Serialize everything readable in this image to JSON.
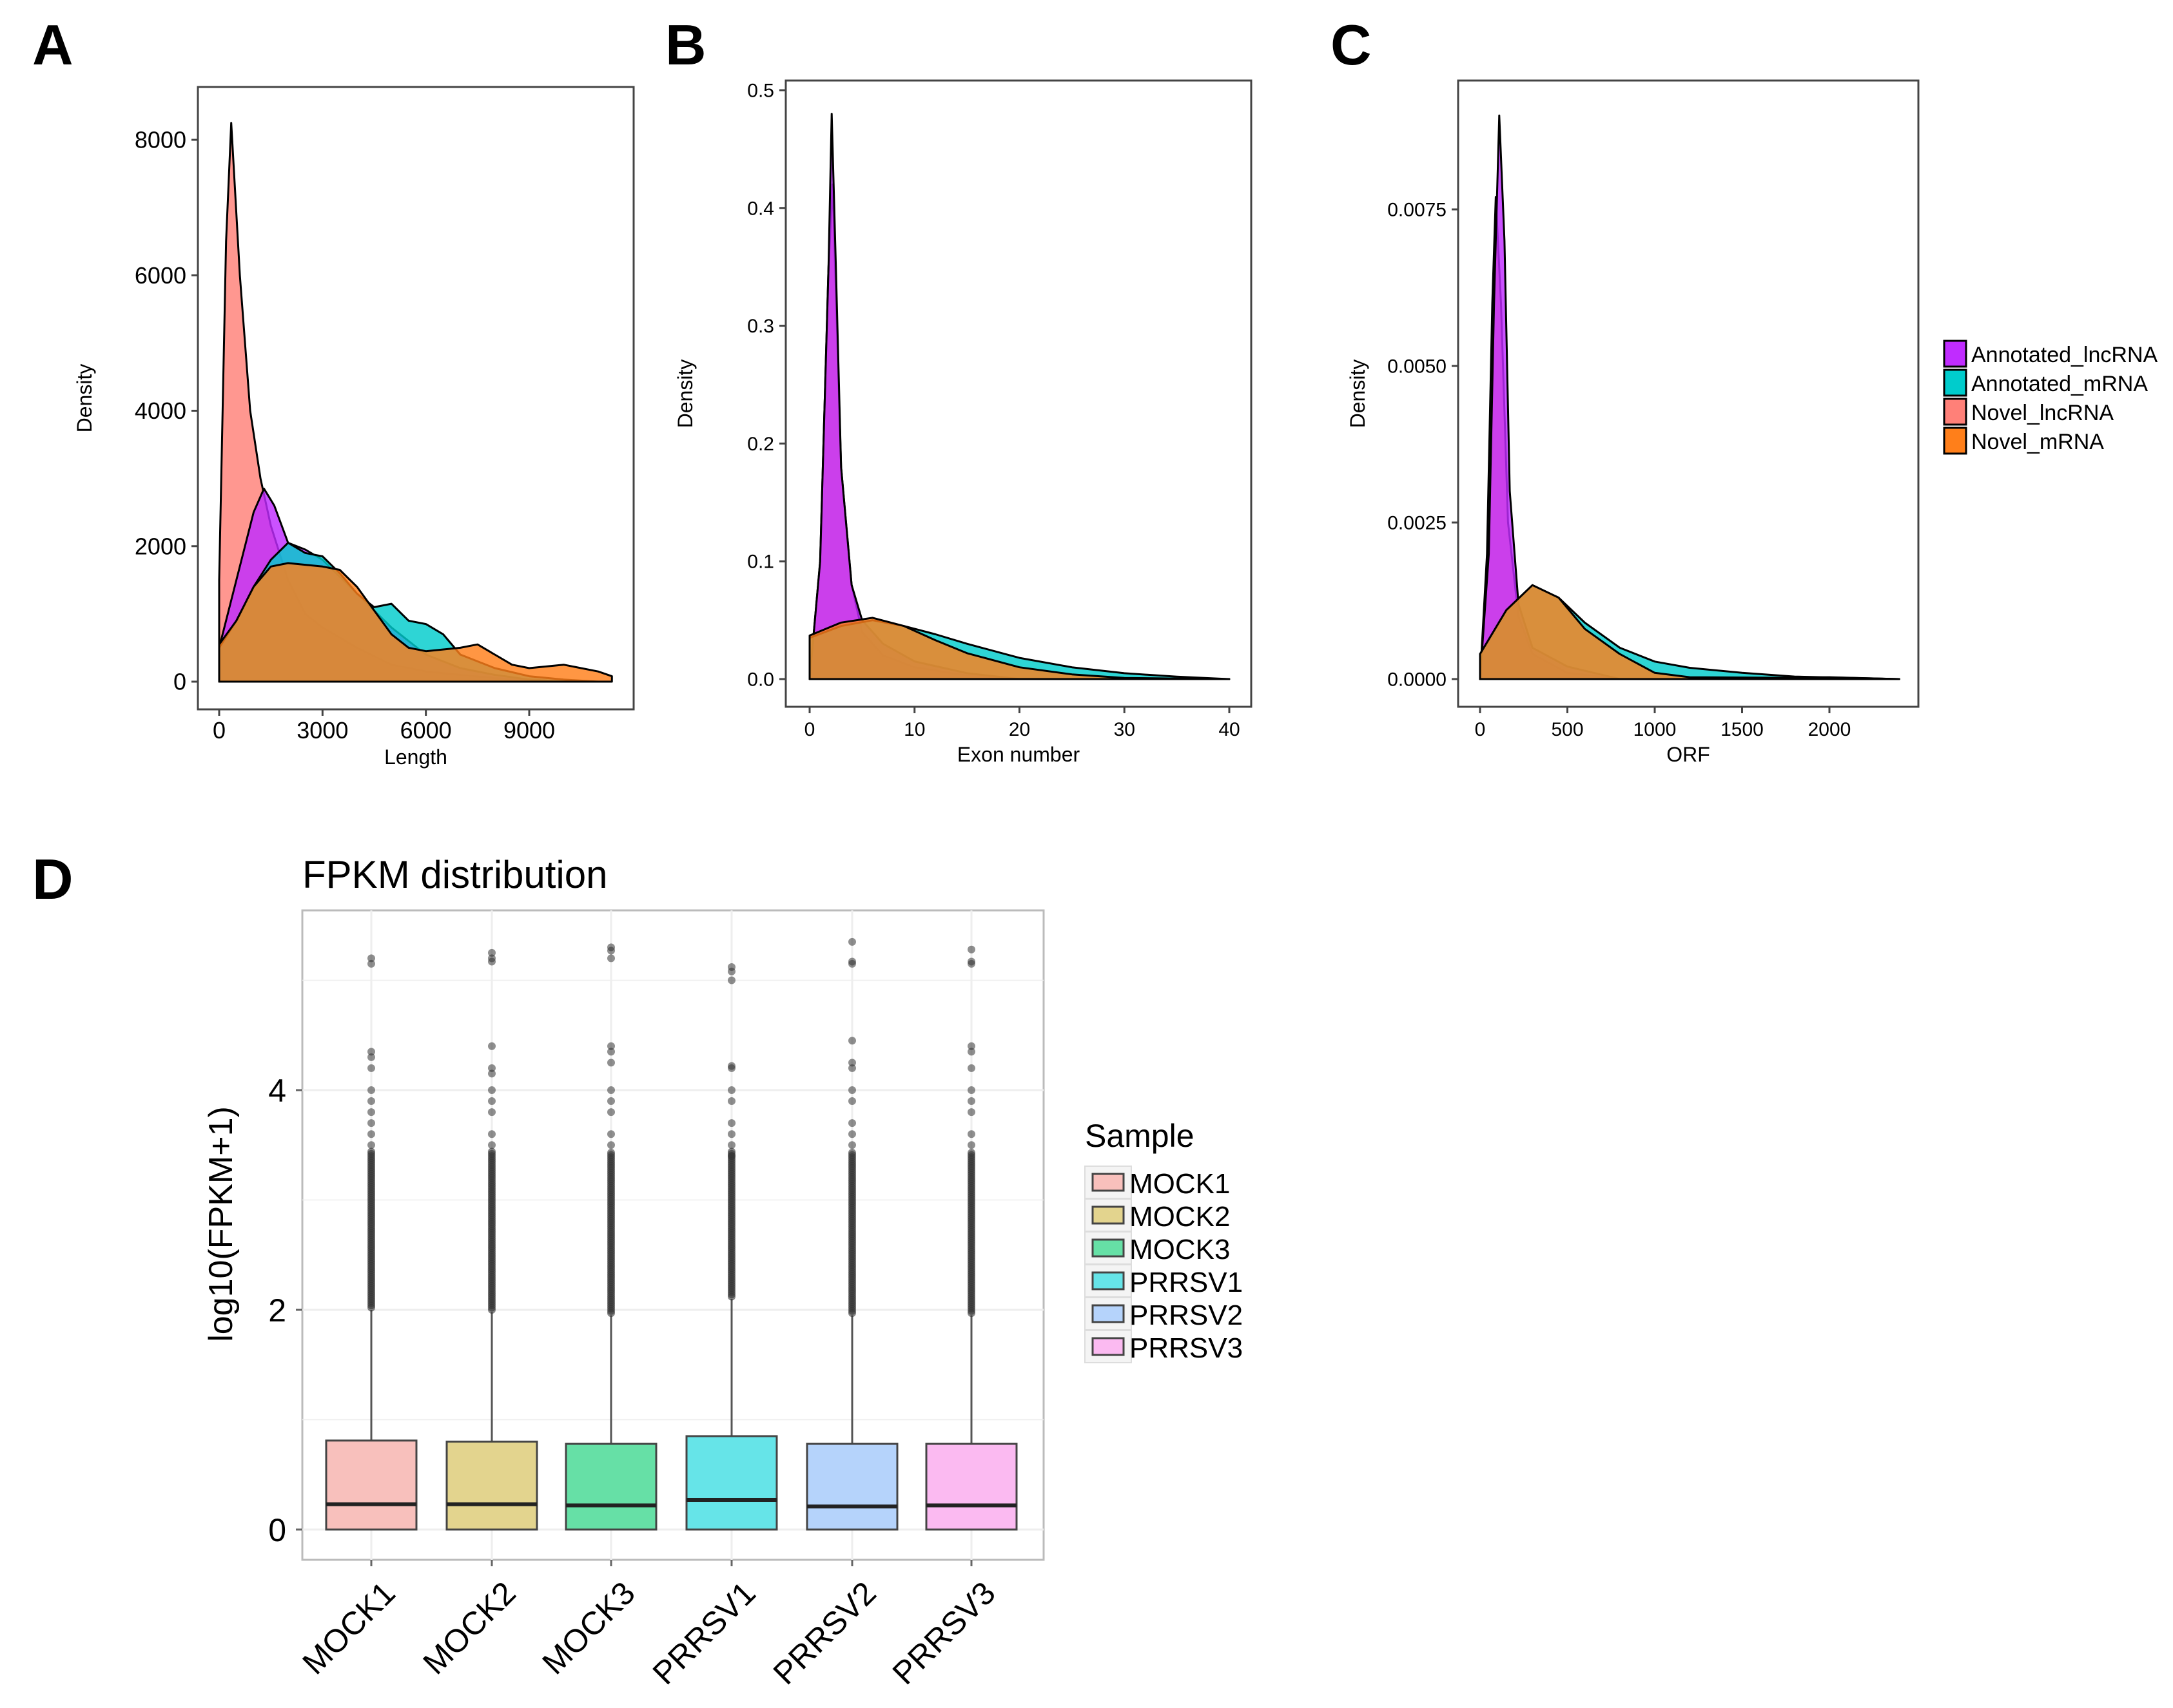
{
  "panel_letters": {
    "a": "A",
    "b": "B",
    "c": "C",
    "d": "D"
  },
  "density_legend": {
    "items": [
      {
        "label": "Annotated_lncRNA",
        "color": "#c02cff"
      },
      {
        "label": "Annotated_mRNA",
        "color": "#00cccc"
      },
      {
        "label": "Novel_lncRNA",
        "color": "#ff8078"
      },
      {
        "label": "Novel_mRNA",
        "color": "#ff7f1a"
      }
    ]
  },
  "chart_data": [
    {
      "type": "area",
      "panel": "A",
      "xlabel": "Length",
      "ylabel": "Density",
      "xlim": [
        0,
        11400
      ],
      "ylim": [
        0,
        8500
      ],
      "xticks": [
        "0",
        "3000",
        "6000",
        "9000"
      ],
      "xtick_values": [
        0,
        3000,
        6000,
        9000
      ],
      "yticks": [
        "0",
        "2000",
        "4000",
        "6000",
        "8000"
      ],
      "ytick_values": [
        0,
        2000,
        4000,
        6000,
        8000
      ],
      "series": [
        {
          "name": "Novel_lncRNA",
          "points": [
            [
              0,
              1500
            ],
            [
              200,
              6500
            ],
            [
              350,
              8250
            ],
            [
              600,
              6000
            ],
            [
              900,
              4000
            ],
            [
              1200,
              3000
            ],
            [
              1500,
              2300
            ],
            [
              2000,
              1500
            ],
            [
              2500,
              1000
            ],
            [
              3000,
              800
            ],
            [
              4000,
              500
            ],
            [
              5000,
              250
            ],
            [
              6000,
              150
            ],
            [
              7000,
              100
            ],
            [
              8000,
              50
            ],
            [
              9000,
              30
            ],
            [
              10000,
              0
            ]
          ]
        },
        {
          "name": "Annotated_lncRNA",
          "points": [
            [
              0,
              500
            ],
            [
              500,
              1500
            ],
            [
              1000,
              2500
            ],
            [
              1300,
              2850
            ],
            [
              1600,
              2600
            ],
            [
              2000,
              2050
            ],
            [
              2500,
              1950
            ],
            [
              3000,
              1800
            ],
            [
              4000,
              1300
            ],
            [
              5000,
              800
            ],
            [
              6000,
              400
            ],
            [
              7000,
              200
            ],
            [
              8000,
              100
            ],
            [
              9000,
              30
            ],
            [
              10000,
              0
            ]
          ]
        },
        {
          "name": "Annotated_mRNA",
          "points": [
            [
              0,
              500
            ],
            [
              500,
              900
            ],
            [
              1000,
              1400
            ],
            [
              1500,
              1800
            ],
            [
              2000,
              2050
            ],
            [
              2500,
              1900
            ],
            [
              3000,
              1850
            ],
            [
              3500,
              1600
            ],
            [
              4000,
              1300
            ],
            [
              4500,
              1100
            ],
            [
              5000,
              1150
            ],
            [
              5500,
              900
            ],
            [
              6000,
              850
            ],
            [
              6500,
              700
            ],
            [
              7000,
              400
            ],
            [
              8000,
              200
            ],
            [
              9000,
              80
            ],
            [
              10000,
              30
            ],
            [
              11000,
              0
            ]
          ]
        },
        {
          "name": "Novel_mRNA",
          "points": [
            [
              0,
              550
            ],
            [
              500,
              900
            ],
            [
              1000,
              1400
            ],
            [
              1500,
              1700
            ],
            [
              2000,
              1750
            ],
            [
              3000,
              1700
            ],
            [
              3500,
              1650
            ],
            [
              4000,
              1400
            ],
            [
              4500,
              1050
            ],
            [
              5000,
              700
            ],
            [
              5500,
              500
            ],
            [
              6000,
              450
            ],
            [
              7000,
              500
            ],
            [
              7500,
              550
            ],
            [
              8000,
              400
            ],
            [
              8500,
              250
            ],
            [
              9000,
              200
            ],
            [
              10000,
              250
            ],
            [
              11000,
              150
            ],
            [
              11400,
              80
            ]
          ]
        }
      ]
    },
    {
      "type": "area",
      "panel": "B",
      "xlabel": "Exon number",
      "ylabel": "Density",
      "xlim": [
        0,
        40
      ],
      "ylim": [
        0,
        0.5
      ],
      "xticks": [
        "0",
        "10",
        "20",
        "30",
        "40"
      ],
      "xtick_values": [
        0,
        10,
        20,
        30,
        40
      ],
      "yticks": [
        "0.0",
        "0.1",
        "0.2",
        "0.3",
        "0.4",
        "0.5"
      ],
      "ytick_values": [
        0,
        0.1,
        0.2,
        0.3,
        0.4,
        0.5
      ],
      "series": [
        {
          "name": "Annotated_lncRNA",
          "points": [
            [
              0,
              0
            ],
            [
              1,
              0.1
            ],
            [
              1.8,
              0.35
            ],
            [
              2.1,
              0.48
            ],
            [
              2.5,
              0.35
            ],
            [
              3,
              0.18
            ],
            [
              4,
              0.08
            ],
            [
              5,
              0.05
            ],
            [
              7,
              0.03
            ],
            [
              10,
              0.015
            ],
            [
              15,
              0.005
            ],
            [
              20,
              0
            ]
          ]
        },
        {
          "name": "Novel_lncRNA",
          "points": [
            [
              0,
              0
            ],
            [
              1,
              0.1
            ],
            [
              1.8,
              0.35
            ],
            [
              2.2,
              0.42
            ],
            [
              2.6,
              0.3
            ],
            [
              3,
              0.18
            ],
            [
              4,
              0.08
            ],
            [
              5,
              0.04
            ],
            [
              7,
              0.02
            ],
            [
              10,
              0.01
            ],
            [
              15,
              0.003
            ],
            [
              20,
              0
            ]
          ]
        },
        {
          "name": "Annotated_mRNA",
          "points": [
            [
              0,
              0.035
            ],
            [
              3,
              0.045
            ],
            [
              6,
              0.05
            ],
            [
              9,
              0.045
            ],
            [
              12,
              0.038
            ],
            [
              15,
              0.03
            ],
            [
              20,
              0.018
            ],
            [
              25,
              0.01
            ],
            [
              30,
              0.005
            ],
            [
              35,
              0.002
            ],
            [
              40,
              0
            ]
          ]
        },
        {
          "name": "Novel_mRNA",
          "points": [
            [
              0,
              0.037
            ],
            [
              3,
              0.048
            ],
            [
              6,
              0.052
            ],
            [
              9,
              0.045
            ],
            [
              12,
              0.033
            ],
            [
              15,
              0.022
            ],
            [
              20,
              0.01
            ],
            [
              25,
              0.004
            ],
            [
              30,
              0.001
            ],
            [
              40,
              0
            ]
          ]
        }
      ]
    },
    {
      "type": "area",
      "panel": "C",
      "xlabel": "ORF",
      "ylabel": "Density",
      "xlim": [
        0,
        2400
      ],
      "ylim": [
        0,
        0.0092
      ],
      "xticks": [
        "0",
        "500",
        "1000",
        "1500",
        "2000"
      ],
      "xtick_values": [
        0,
        500,
        1000,
        1500,
        2000
      ],
      "yticks": [
        "0.0000",
        "0.0025",
        "0.0050",
        "0.0075"
      ],
      "ytick_values": [
        0,
        0.0025,
        0.005,
        0.0075
      ],
      "series": [
        {
          "name": "Annotated_lncRNA",
          "points": [
            [
              0,
              0
            ],
            [
              50,
              0.002
            ],
            [
              80,
              0.006
            ],
            [
              110,
              0.009
            ],
            [
              140,
              0.007
            ],
            [
              170,
              0.003
            ],
            [
              220,
              0.0012
            ],
            [
              300,
              0.0005
            ],
            [
              500,
              0.0002
            ],
            [
              800,
              0
            ]
          ]
        },
        {
          "name": "Novel_lncRNA",
          "points": [
            [
              0,
              0
            ],
            [
              40,
              0.002
            ],
            [
              70,
              0.006
            ],
            [
              90,
              0.0077
            ],
            [
              120,
              0.006
            ],
            [
              160,
              0.0025
            ],
            [
              220,
              0.001
            ],
            [
              300,
              0.0004
            ],
            [
              500,
              0.0001
            ],
            [
              800,
              0
            ]
          ]
        },
        {
          "name": "Annotated_mRNA",
          "points": [
            [
              0,
              0.0004
            ],
            [
              150,
              0.0011
            ],
            [
              300,
              0.0015
            ],
            [
              450,
              0.0013
            ],
            [
              600,
              0.0009
            ],
            [
              800,
              0.0005
            ],
            [
              1000,
              0.00028
            ],
            [
              1200,
              0.00018
            ],
            [
              1500,
              0.0001
            ],
            [
              1800,
              4e-05
            ],
            [
              2400,
              0
            ]
          ]
        },
        {
          "name": "Novel_mRNA",
          "points": [
            [
              0,
              0.0004
            ],
            [
              150,
              0.0011
            ],
            [
              300,
              0.0015
            ],
            [
              450,
              0.0013
            ],
            [
              600,
              0.0008
            ],
            [
              800,
              0.0004
            ],
            [
              1000,
              0.0001
            ],
            [
              1200,
              3e-05
            ],
            [
              1800,
              2e-05
            ],
            [
              2000,
              3e-05
            ],
            [
              2400,
              0
            ]
          ]
        }
      ]
    },
    {
      "type": "box",
      "panel": "D",
      "title": "FPKM distribution",
      "xlabel": "",
      "ylabel": "log10(FPKM+1)",
      "ylim": [
        -0.3,
        5.6
      ],
      "yticks": [
        "0",
        "2",
        "4"
      ],
      "ytick_values": [
        0,
        2,
        4
      ],
      "legend_title": "Sample",
      "categories": [
        "MOCK1",
        "MOCK2",
        "MOCK3",
        "PRRSV1",
        "PRRSV2",
        "PRRSV3"
      ],
      "colors": [
        "#f8c0bc",
        "#e3d48e",
        "#66e0a6",
        "#66e4e8",
        "#b5d3fb",
        "#fbbaf1"
      ],
      "boxes": [
        {
          "q1": 0,
          "median": 0.23,
          "q3": 0.81,
          "whisker_low": 0,
          "whisker_high": 2.0,
          "outliers": [
            3.5,
            3.6,
            3.7,
            3.8,
            3.9,
            4.0,
            4.2,
            4.3,
            4.35,
            5.15,
            5.2
          ]
        },
        {
          "q1": 0,
          "median": 0.23,
          "q3": 0.8,
          "whisker_low": 0,
          "whisker_high": 1.98,
          "outliers": [
            3.5,
            3.6,
            3.8,
            3.9,
            4.0,
            4.15,
            4.2,
            4.4,
            5.17,
            5.2,
            5.25
          ]
        },
        {
          "q1": 0,
          "median": 0.22,
          "q3": 0.78,
          "whisker_low": 0,
          "whisker_high": 1.95,
          "outliers": [
            3.5,
            3.6,
            3.8,
            3.9,
            4.0,
            4.25,
            4.35,
            4.4,
            5.2,
            5.27,
            5.3
          ]
        },
        {
          "q1": 0,
          "median": 0.27,
          "q3": 0.85,
          "whisker_low": 0,
          "whisker_high": 2.1,
          "outliers": [
            3.4,
            3.5,
            3.6,
            3.7,
            3.9,
            4.0,
            4.2,
            4.22,
            5.0,
            5.08,
            5.12
          ]
        },
        {
          "q1": 0,
          "median": 0.21,
          "q3": 0.78,
          "whisker_low": 0,
          "whisker_high": 1.95,
          "outliers": [
            3.5,
            3.6,
            3.7,
            3.9,
            4.0,
            4.2,
            4.25,
            4.45,
            5.15,
            5.17,
            5.35
          ]
        },
        {
          "q1": 0,
          "median": 0.22,
          "q3": 0.78,
          "whisker_low": 0,
          "whisker_high": 1.95,
          "outliers": [
            3.5,
            3.6,
            3.8,
            3.9,
            4.0,
            4.2,
            4.35,
            4.4,
            5.15,
            5.17,
            5.28
          ]
        }
      ]
    }
  ]
}
